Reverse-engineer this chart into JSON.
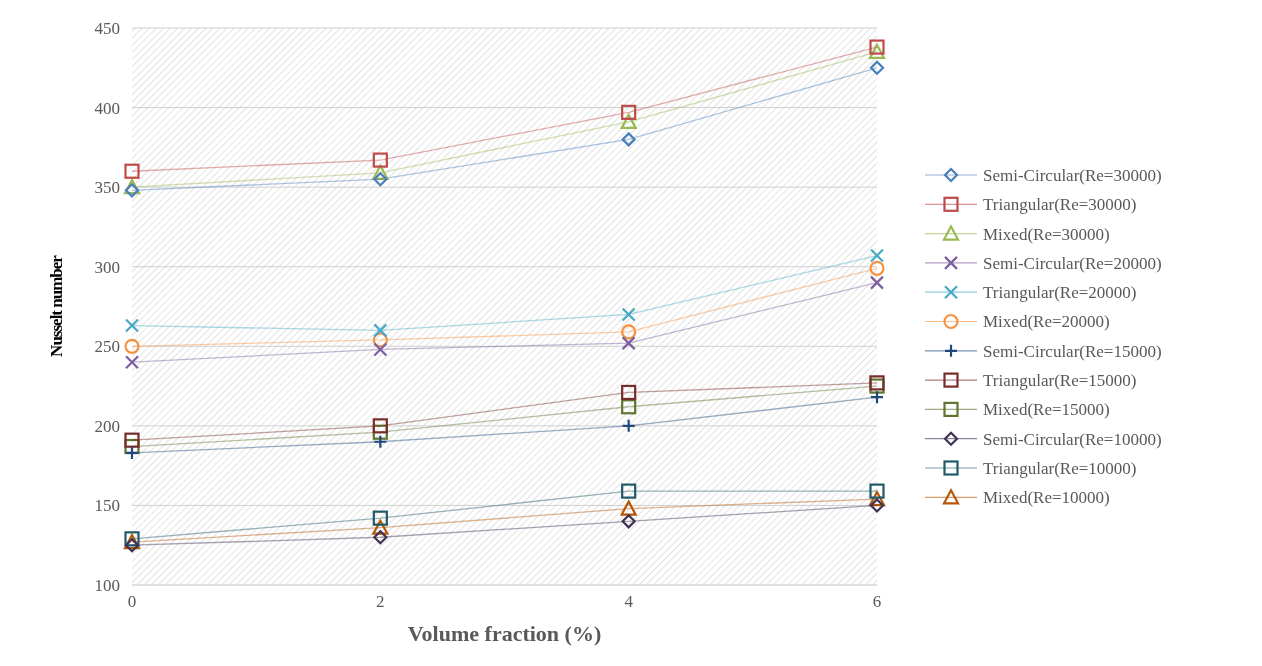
{
  "chart_data": {
    "type": "line",
    "xlabel": "Volume fraction (%)",
    "ylabel": "Nusselt number",
    "x": [
      0,
      2,
      4,
      6
    ],
    "xlim": [
      0,
      6
    ],
    "xticks": [
      0,
      2,
      4,
      6
    ],
    "ylim": [
      100,
      450
    ],
    "yticks": [
      100,
      150,
      200,
      250,
      300,
      350,
      400,
      450
    ],
    "grid": "y",
    "legend": "right",
    "series": [
      {
        "name": "Semi-Circular(Re=30000)",
        "color": "#4a7ebb",
        "marker": "diamond",
        "values": [
          348,
          355,
          380,
          425
        ]
      },
      {
        "name": "Triangular(Re=30000)",
        "color": "#be4b48",
        "marker": "square",
        "values": [
          360,
          367,
          397,
          438
        ]
      },
      {
        "name": "Mixed(Re=30000)",
        "color": "#98b954",
        "marker": "triangle",
        "values": [
          350,
          359,
          391,
          435
        ]
      },
      {
        "name": "Semi-Circular(Re=20000)",
        "color": "#7d5fa0",
        "marker": "cross",
        "values": [
          240,
          248,
          252,
          290
        ]
      },
      {
        "name": "Triangular(Re=20000)",
        "color": "#46aac5",
        "marker": "cross",
        "values": [
          263,
          260,
          270,
          307
        ]
      },
      {
        "name": "Mixed(Re=20000)",
        "color": "#f69240",
        "marker": "circle",
        "values": [
          250,
          254,
          259,
          299
        ]
      },
      {
        "name": "Semi-Circular(Re=15000)",
        "color": "#1f497d",
        "marker": "plus",
        "values": [
          183,
          190,
          200,
          218
        ]
      },
      {
        "name": "Triangular(Re=15000)",
        "color": "#772c2a",
        "marker": "square",
        "values": [
          191,
          200,
          221,
          227
        ]
      },
      {
        "name": "Mixed(Re=15000)",
        "color": "#5f7530",
        "marker": "square",
        "values": [
          187,
          196,
          212,
          225
        ]
      },
      {
        "name": "Semi-Circular(Re=10000)",
        "color": "#3f3151",
        "marker": "diamond",
        "values": [
          125,
          130,
          140,
          150
        ]
      },
      {
        "name": "Triangular(Re=10000)",
        "color": "#215968",
        "marker": "square",
        "values": [
          129,
          142,
          159,
          159
        ]
      },
      {
        "name": "Mixed(Re=10000)",
        "color": "#b65708",
        "marker": "triangle",
        "values": [
          127,
          136,
          148,
          154
        ]
      }
    ]
  }
}
